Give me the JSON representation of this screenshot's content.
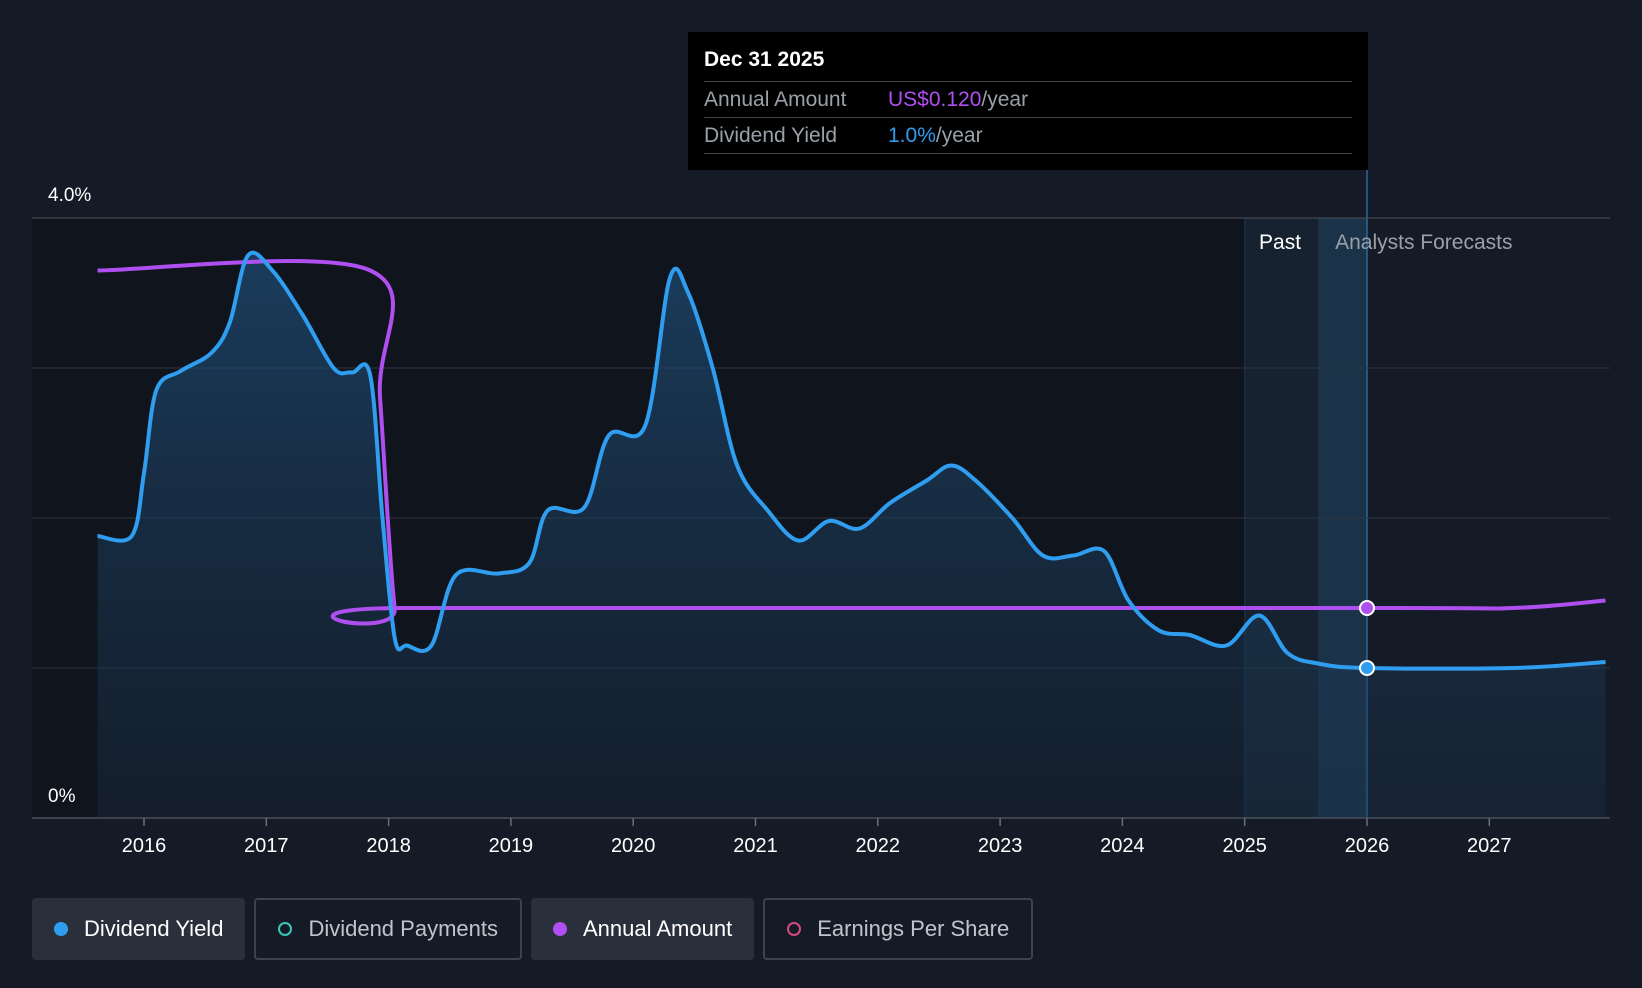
{
  "tooltip": {
    "date": "Dec 31 2025",
    "rows": [
      {
        "label": "Annual Amount",
        "value": "US$0.120",
        "unit": "/year"
      },
      {
        "label": "Dividend Yield",
        "value": "1.0%",
        "unit": "/year"
      }
    ]
  },
  "region_labels": {
    "past": "Past",
    "forecast": "Analysts Forecasts"
  },
  "legend": [
    {
      "label": "Dividend Yield",
      "active": true,
      "color": "#2f9df0",
      "filled": true
    },
    {
      "label": "Dividend Payments",
      "active": false,
      "color": "#38c9b8",
      "filled": false
    },
    {
      "label": "Annual Amount",
      "active": true,
      "color": "#b04ff0",
      "filled": true
    },
    {
      "label": "Earnings Per Share",
      "active": false,
      "color": "#d8477f",
      "filled": false
    }
  ],
  "chart_data": {
    "type": "line",
    "ylim": [
      0,
      4.0
    ],
    "y_tick_labels": [
      {
        "value": 4.0,
        "label": "4.0%"
      },
      {
        "value": 0,
        "label": "0%"
      }
    ],
    "y_gridlines": [
      4.0,
      3.0,
      2.0,
      1.0
    ],
    "xlim": [
      2015.2,
      2027.95
    ],
    "x_ticks": [
      2016,
      2017,
      2018,
      2019,
      2020,
      2021,
      2022,
      2023,
      2024,
      2025,
      2026,
      2027
    ],
    "past_start": 2025.0,
    "forecast_start": 2025.6,
    "highlight_x": 2026.0,
    "colors": {
      "yield": "#2f9df0",
      "annual": "#b04ff0"
    },
    "series": [
      {
        "name": "Dividend Yield",
        "points": [
          [
            2015.62,
            1.88
          ],
          [
            2015.9,
            1.88
          ],
          [
            2016.0,
            2.3
          ],
          [
            2016.1,
            2.85
          ],
          [
            2016.3,
            2.98
          ],
          [
            2016.55,
            3.1
          ],
          [
            2016.7,
            3.3
          ],
          [
            2016.85,
            3.75
          ],
          [
            2017.05,
            3.65
          ],
          [
            2017.3,
            3.35
          ],
          [
            2017.55,
            3.0
          ],
          [
            2017.7,
            2.97
          ],
          [
            2017.85,
            2.95
          ],
          [
            2017.95,
            2.0
          ],
          [
            2018.05,
            1.2
          ],
          [
            2018.15,
            1.15
          ],
          [
            2018.35,
            1.15
          ],
          [
            2018.55,
            1.62
          ],
          [
            2018.9,
            1.63
          ],
          [
            2019.15,
            1.7
          ],
          [
            2019.3,
            2.05
          ],
          [
            2019.6,
            2.07
          ],
          [
            2019.8,
            2.55
          ],
          [
            2020.1,
            2.62
          ],
          [
            2020.3,
            3.6
          ],
          [
            2020.45,
            3.5
          ],
          [
            2020.65,
            3.0
          ],
          [
            2020.85,
            2.35
          ],
          [
            2021.1,
            2.05
          ],
          [
            2021.35,
            1.85
          ],
          [
            2021.6,
            1.98
          ],
          [
            2021.85,
            1.93
          ],
          [
            2022.1,
            2.1
          ],
          [
            2022.4,
            2.25
          ],
          [
            2022.6,
            2.35
          ],
          [
            2022.8,
            2.25
          ],
          [
            2023.1,
            2.0
          ],
          [
            2023.35,
            1.75
          ],
          [
            2023.6,
            1.75
          ],
          [
            2023.85,
            1.78
          ],
          [
            2024.05,
            1.45
          ],
          [
            2024.3,
            1.25
          ],
          [
            2024.55,
            1.22
          ],
          [
            2024.85,
            1.15
          ],
          [
            2025.12,
            1.35
          ],
          [
            2025.35,
            1.1
          ],
          [
            2025.6,
            1.03
          ],
          [
            2026.0,
            1.0
          ],
          [
            2027.2,
            1.0
          ],
          [
            2027.95,
            1.04
          ]
        ]
      },
      {
        "name": "Annual Amount",
        "points": [
          [
            2015.62,
            3.65
          ],
          [
            2017.85,
            3.65
          ],
          [
            2017.93,
            2.8
          ],
          [
            2018.05,
            1.4
          ],
          [
            2018.15,
            1.4
          ],
          [
            2026.0,
            1.4
          ],
          [
            2027.2,
            1.4
          ],
          [
            2027.95,
            1.45
          ]
        ]
      }
    ]
  }
}
